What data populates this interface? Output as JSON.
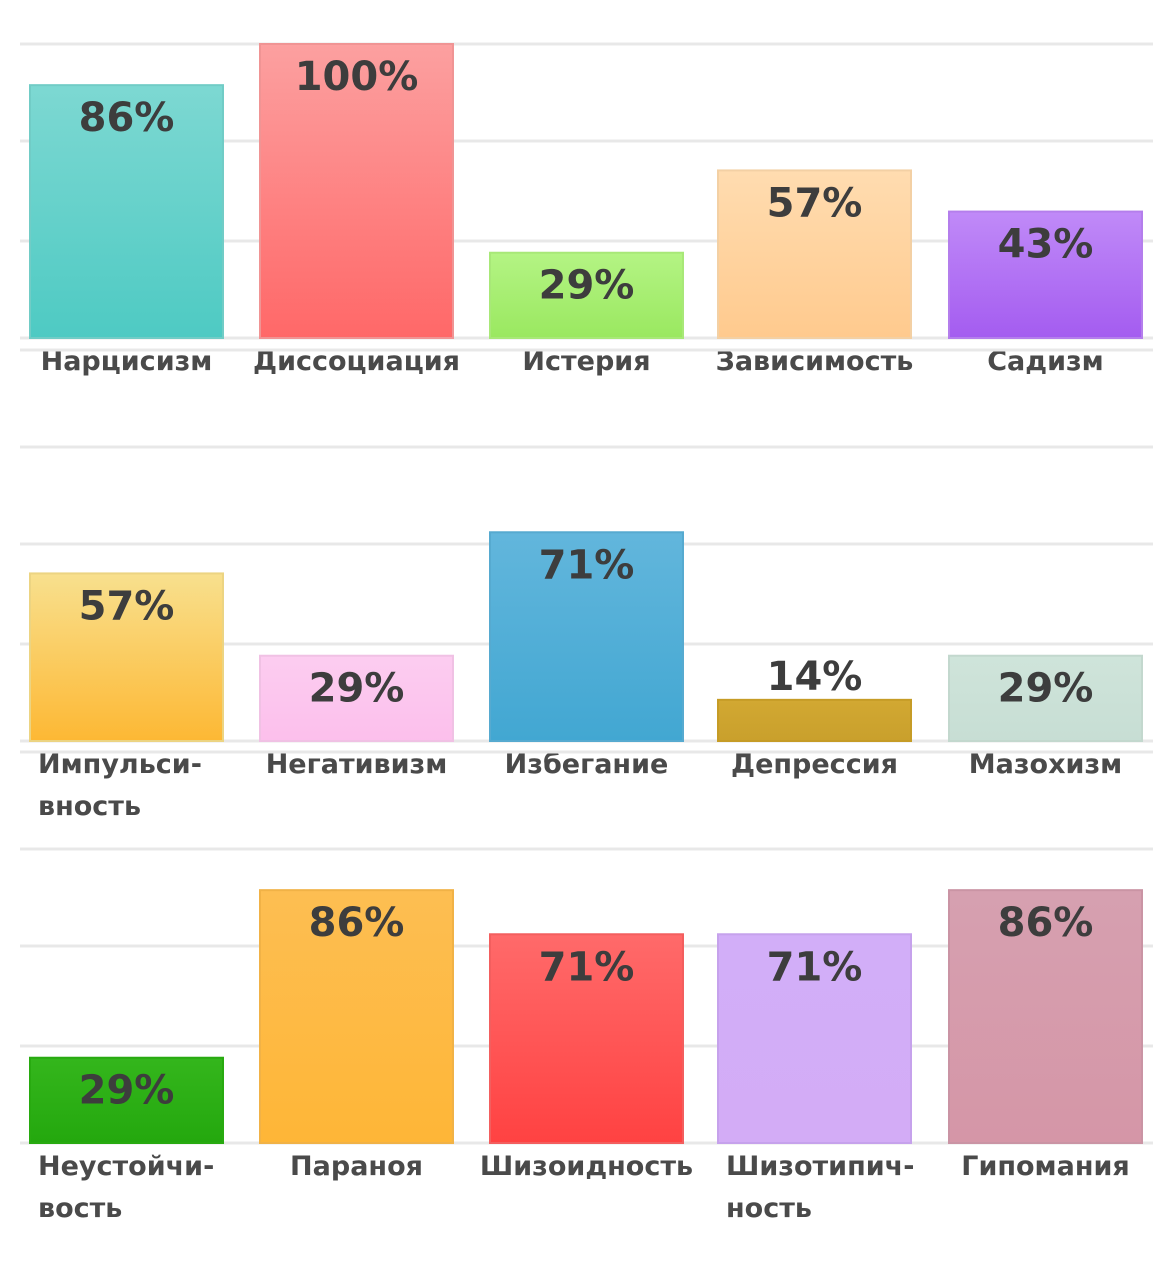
{
  "chart_data": [
    {
      "type": "bar",
      "ylim": [
        0,
        100
      ],
      "grid": true,
      "categories": [
        "Нарцисизм",
        "Диссоциация",
        "Истерия",
        "Зависимость",
        "Садизм"
      ],
      "values": [
        86,
        100,
        29,
        57,
        43
      ],
      "value_labels": [
        "86%",
        "100%",
        "29%",
        "57%",
        "43%"
      ],
      "colors": [
        [
          "#7dd8d2",
          "#4ecac3"
        ],
        [
          "#fca0a0",
          "#ff6868"
        ],
        [
          "#b4f484",
          "#9ae860"
        ],
        [
          "#ffdcb0",
          "#ffca8e"
        ],
        [
          "#c08af8",
          "#a45cf0"
        ]
      ]
    },
    {
      "type": "bar",
      "ylim": [
        0,
        100
      ],
      "grid": true,
      "categories": [
        "Импульси-вность",
        "Негативизм",
        "Избегание",
        "Депрессия",
        "Мазохизм"
      ],
      "category_lines": [
        [
          "Импульси-",
          "вность"
        ],
        [
          "Негативизм"
        ],
        [
          "Избегание"
        ],
        [
          "Депрессия"
        ],
        [
          "Мазохизм"
        ]
      ],
      "values": [
        57,
        29,
        71,
        14,
        29
      ],
      "value_labels": [
        "57%",
        "29%",
        "71%",
        "14%",
        "29%"
      ],
      "colors": [
        [
          "#f8e08e",
          "#fdb834"
        ],
        [
          "#fccdf0",
          "#fcbfec"
        ],
        [
          "#62b6dc",
          "#42a7d2"
        ],
        [
          "#d2a832",
          "#c9a02c"
        ],
        [
          "#cfe4da",
          "#c7ded4"
        ]
      ]
    },
    {
      "type": "bar",
      "ylim": [
        0,
        100
      ],
      "grid": true,
      "categories": [
        "Неустойчи-вость",
        "Параноя",
        "Шизоидность",
        "Шизотипич-ность",
        "Гипомания"
      ],
      "category_lines": [
        [
          "Неустойчи-",
          "вость"
        ],
        [
          "Параноя"
        ],
        [
          "Шизоидность"
        ],
        [
          "Шизотипич-",
          "ность"
        ],
        [
          "Гипомания"
        ]
      ],
      "values": [
        29,
        86,
        71,
        71,
        86
      ],
      "value_labels": [
        "29%",
        "86%",
        "71%",
        "71%",
        "86%"
      ],
      "colors": [
        [
          "#34b61c",
          "#24a80e"
        ],
        [
          "#fdbe52",
          "#feb637"
        ],
        [
          "#ff6a6a",
          "#ff4242"
        ],
        [
          "#d2aef8",
          "#d3acf6"
        ],
        [
          "#d6a0b0",
          "#d596a7"
        ]
      ]
    }
  ]
}
